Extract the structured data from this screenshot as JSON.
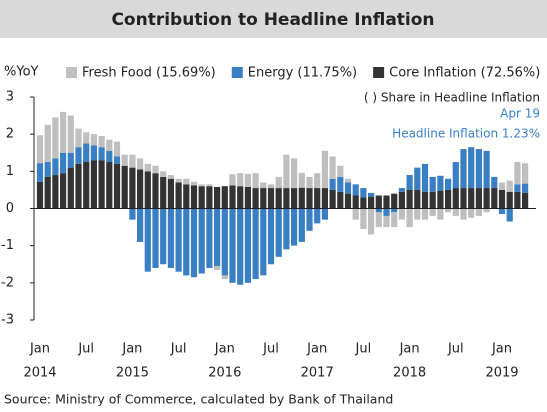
{
  "chart_data": {
    "type": "stacked_bar",
    "title": "Contribution to Headline Inflation",
    "y_label": "%YoY",
    "annotations": [
      "( ) Share in Headline Inflation",
      "Apr 19",
      "Headline Inflation 1.23%"
    ],
    "source": "Source: Ministry of Commerce, calculated by Bank of Thailand",
    "categories": [
      "Jan",
      null,
      null,
      null,
      null,
      null,
      "Jul",
      null,
      null,
      null,
      null,
      null,
      "Jan",
      null,
      null,
      null,
      null,
      null,
      "Jul",
      null,
      null,
      null,
      null,
      null,
      "Jan",
      null,
      null,
      null,
      null,
      null,
      "Jul",
      null,
      null,
      null,
      null,
      null,
      "Jan",
      null,
      null,
      null,
      null,
      null,
      "Jul",
      null,
      null,
      null,
      null,
      null,
      "Jan",
      null,
      null,
      null,
      null,
      null,
      "Jul",
      null,
      null,
      null,
      null,
      null,
      "Jan",
      null,
      null,
      null
    ],
    "years": [
      "2014",
      "2015",
      "2016",
      "2017",
      "2018",
      "2019"
    ],
    "series": [
      {
        "name": "Fresh Food (15.69%)",
        "color": "#bfbfbf",
        "values": [
          0.75,
          1.0,
          1.1,
          1.1,
          1.0,
          0.5,
          0.3,
          0.3,
          0.3,
          0.3,
          0.4,
          0.3,
          0.35,
          0.3,
          0.2,
          0.2,
          0.15,
          0.1,
          0.1,
          0.15,
          0.1,
          0.05,
          0.05,
          -0.1,
          -0.1,
          0.3,
          0.35,
          0.35,
          0.4,
          0.15,
          0.1,
          0.3,
          0.9,
          0.8,
          0.4,
          0.3,
          0.4,
          1.0,
          0.6,
          0.3,
          0.1,
          -0.3,
          -0.55,
          -0.7,
          -0.4,
          -0.3,
          -0.4,
          -0.3,
          -0.5,
          -0.3,
          -0.3,
          -0.2,
          -0.3,
          -0.1,
          -0.2,
          -0.3,
          -0.25,
          -0.2,
          -0.1,
          0.0,
          0.2,
          0.3,
          0.6,
          0.55
        ]
      },
      {
        "name": "Energy (11.75%)",
        "color": "#3a7fc4",
        "values": [
          0.5,
          0.4,
          0.45,
          0.55,
          0.4,
          0.45,
          0.5,
          0.4,
          0.35,
          0.3,
          0.2,
          0.0,
          -0.3,
          -0.9,
          -1.7,
          -1.6,
          -1.5,
          -1.6,
          -1.7,
          -1.8,
          -1.85,
          -1.75,
          -1.6,
          -1.55,
          -1.8,
          -2.0,
          -2.05,
          -2.0,
          -1.9,
          -1.8,
          -1.5,
          -1.3,
          -1.1,
          -1.0,
          -0.9,
          -0.6,
          -0.4,
          -0.3,
          0.3,
          0.4,
          0.3,
          0.3,
          0.25,
          0.1,
          -0.1,
          -0.2,
          -0.1,
          0.1,
          0.4,
          0.6,
          0.75,
          0.4,
          0.4,
          0.3,
          0.7,
          1.05,
          1.1,
          1.05,
          1.0,
          0.3,
          -0.15,
          -0.35,
          0.2,
          0.25
        ]
      },
      {
        "name": "Core Inflation (72.56%)",
        "color": "#333333",
        "values": [
          0.72,
          0.85,
          0.9,
          0.95,
          1.1,
          1.2,
          1.25,
          1.3,
          1.3,
          1.25,
          1.2,
          1.15,
          1.1,
          1.05,
          1.0,
          0.95,
          0.85,
          0.8,
          0.7,
          0.65,
          0.62,
          0.6,
          0.6,
          0.58,
          0.6,
          0.62,
          0.6,
          0.58,
          0.55,
          0.55,
          0.55,
          0.55,
          0.55,
          0.55,
          0.56,
          0.55,
          0.55,
          0.55,
          0.5,
          0.45,
          0.4,
          0.35,
          0.3,
          0.32,
          0.35,
          0.35,
          0.4,
          0.45,
          0.5,
          0.5,
          0.45,
          0.45,
          0.48,
          0.5,
          0.55,
          0.55,
          0.55,
          0.55,
          0.55,
          0.55,
          0.5,
          0.45,
          0.45,
          0.42
        ]
      }
    ],
    "stack_order": [
      2,
      1,
      0
    ],
    "ylim": [
      -3,
      3
    ],
    "yticks": [
      -3,
      -2,
      -1,
      0,
      1,
      2,
      3
    ]
  }
}
